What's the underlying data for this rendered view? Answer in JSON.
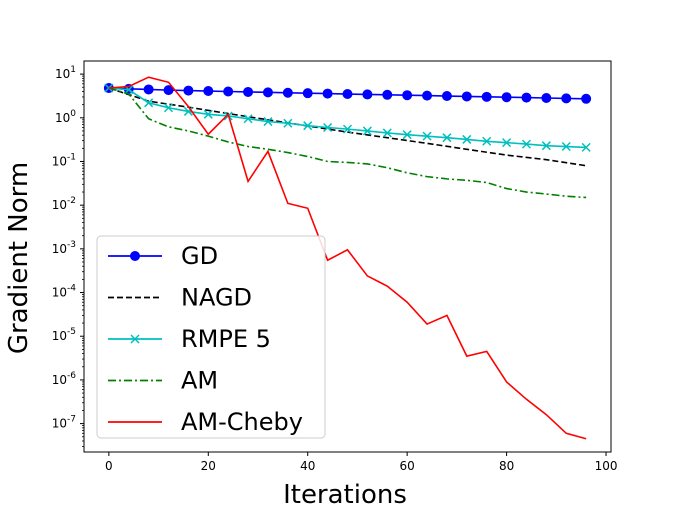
{
  "chart_data": {
    "type": "line",
    "xlabel": "Iterations",
    "ylabel": "Gradient Norm",
    "xlim": [
      -5,
      101
    ],
    "ylim_log10": [
      -7.65,
      1.3
    ],
    "yscale": "log",
    "x_ticks": [
      0,
      20,
      40,
      60,
      80,
      100
    ],
    "y_ticks": [
      {
        "base": "10",
        "exp": "1",
        "log": 1
      },
      {
        "base": "10",
        "exp": "0",
        "log": 0
      },
      {
        "base": "10",
        "exp": "-1",
        "log": -1
      },
      {
        "base": "10",
        "exp": "-2",
        "log": -2
      },
      {
        "base": "10",
        "exp": "-3",
        "log": -3
      },
      {
        "base": "10",
        "exp": "-4",
        "log": -4
      },
      {
        "base": "10",
        "exp": "-5",
        "log": -5
      },
      {
        "base": "10",
        "exp": "-6",
        "log": -6
      },
      {
        "base": "10",
        "exp": "-7",
        "log": -7
      }
    ],
    "grid": false,
    "legend_position": "lower-left",
    "series": [
      {
        "name": "GD",
        "color": "#0000ff",
        "style": "solid",
        "marker": "circle",
        "x": [
          0,
          4,
          8,
          12,
          16,
          20,
          24,
          28,
          32,
          36,
          40,
          44,
          48,
          52,
          56,
          60,
          64,
          68,
          72,
          76,
          80,
          84,
          88,
          92,
          96
        ],
        "y": [
          4.8,
          4.6,
          4.45,
          4.3,
          4.2,
          4.1,
          4.0,
          3.9,
          3.82,
          3.74,
          3.66,
          3.58,
          3.5,
          3.43,
          3.36,
          3.29,
          3.22,
          3.15,
          3.08,
          3.02,
          2.96,
          2.9,
          2.84,
          2.78,
          2.72
        ]
      },
      {
        "name": "NAGD",
        "color": "#000000",
        "style": "dashed",
        "marker": "none",
        "x": [
          0,
          8,
          16,
          24,
          32,
          40,
          48,
          56,
          64,
          72,
          80,
          88,
          96
        ],
        "y": [
          4.8,
          2.4,
          1.75,
          1.25,
          0.9,
          0.65,
          0.47,
          0.35,
          0.26,
          0.19,
          0.14,
          0.11,
          0.08
        ]
      },
      {
        "name": "RMPE 5",
        "color": "#00bfbf",
        "style": "solid",
        "marker": "x",
        "x": [
          0,
          4,
          8,
          12,
          16,
          20,
          24,
          28,
          32,
          36,
          40,
          44,
          48,
          52,
          56,
          60,
          64,
          68,
          72,
          76,
          80,
          84,
          88,
          92,
          96
        ],
        "y": [
          4.8,
          4.4,
          2.2,
          1.7,
          1.4,
          1.2,
          1.1,
          0.95,
          0.82,
          0.75,
          0.66,
          0.6,
          0.55,
          0.5,
          0.45,
          0.41,
          0.38,
          0.35,
          0.32,
          0.29,
          0.27,
          0.25,
          0.23,
          0.22,
          0.21
        ]
      },
      {
        "name": "AM",
        "color": "#008000",
        "style": "dashdot",
        "marker": "none",
        "x": [
          0,
          4,
          8,
          12,
          16,
          20,
          24,
          28,
          32,
          36,
          40,
          44,
          48,
          52,
          56,
          60,
          64,
          68,
          72,
          76,
          80,
          84,
          88,
          92,
          96
        ],
        "y": [
          4.8,
          3.5,
          0.95,
          0.62,
          0.5,
          0.38,
          0.28,
          0.22,
          0.19,
          0.16,
          0.13,
          0.1,
          0.095,
          0.088,
          0.072,
          0.055,
          0.045,
          0.04,
          0.037,
          0.033,
          0.024,
          0.02,
          0.018,
          0.016,
          0.015
        ]
      },
      {
        "name": "AM-Cheby",
        "color": "#ff0000",
        "style": "solid",
        "marker": "none",
        "x": [
          0,
          4,
          8,
          12,
          16,
          20,
          24,
          28,
          32,
          36,
          40,
          44,
          48,
          52,
          56,
          60,
          64,
          68,
          72,
          76,
          80,
          84,
          88,
          92,
          96
        ],
        "y": [
          4.8,
          5.2,
          8.5,
          6.5,
          1.8,
          0.42,
          1.2,
          0.035,
          0.17,
          0.011,
          0.0085,
          0.00055,
          0.00095,
          0.00024,
          0.00014,
          6e-05,
          1.9e-05,
          3e-05,
          3.5e-06,
          4.5e-06,
          9e-07,
          3.6e-07,
          1.6e-07,
          6e-08,
          4.5e-08
        ]
      }
    ]
  }
}
